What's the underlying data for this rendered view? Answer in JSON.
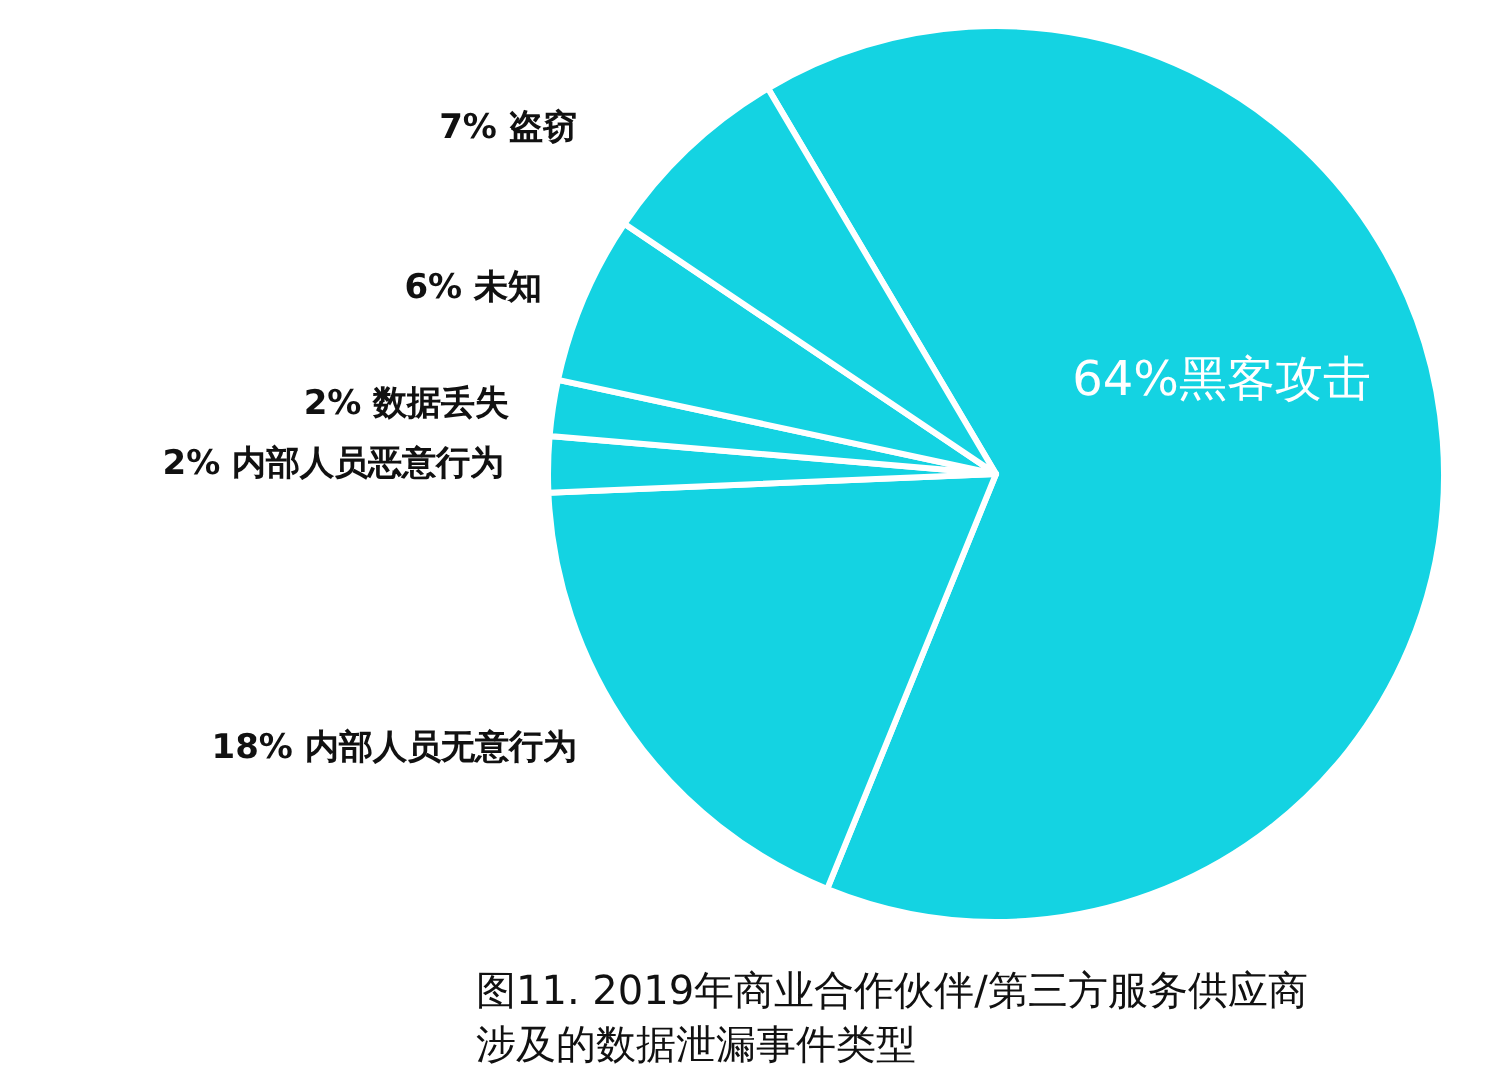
{
  "chart_data": {
    "type": "pie",
    "categories": [
      "黑客攻击",
      "内部人员无意行为",
      "内部人员恶意行为",
      "数据丢失",
      "未知",
      "盗窃"
    ],
    "values": [
      64,
      18,
      2,
      2,
      6,
      7
    ],
    "value_labels": [
      "64%",
      "18%",
      "2%",
      "2%",
      "6%",
      "7%"
    ],
    "colors": [
      "#14d3e2",
      "#14d3e2",
      "#14d3e2",
      "#14d3e2",
      "#14d3e2",
      "#14d3e2"
    ],
    "annotations": [
      "图11. 2019年商业合作伙伴/第三方服务供应商",
      "涉及的数据泄漏事件类型"
    ],
    "legend": false
  }
}
